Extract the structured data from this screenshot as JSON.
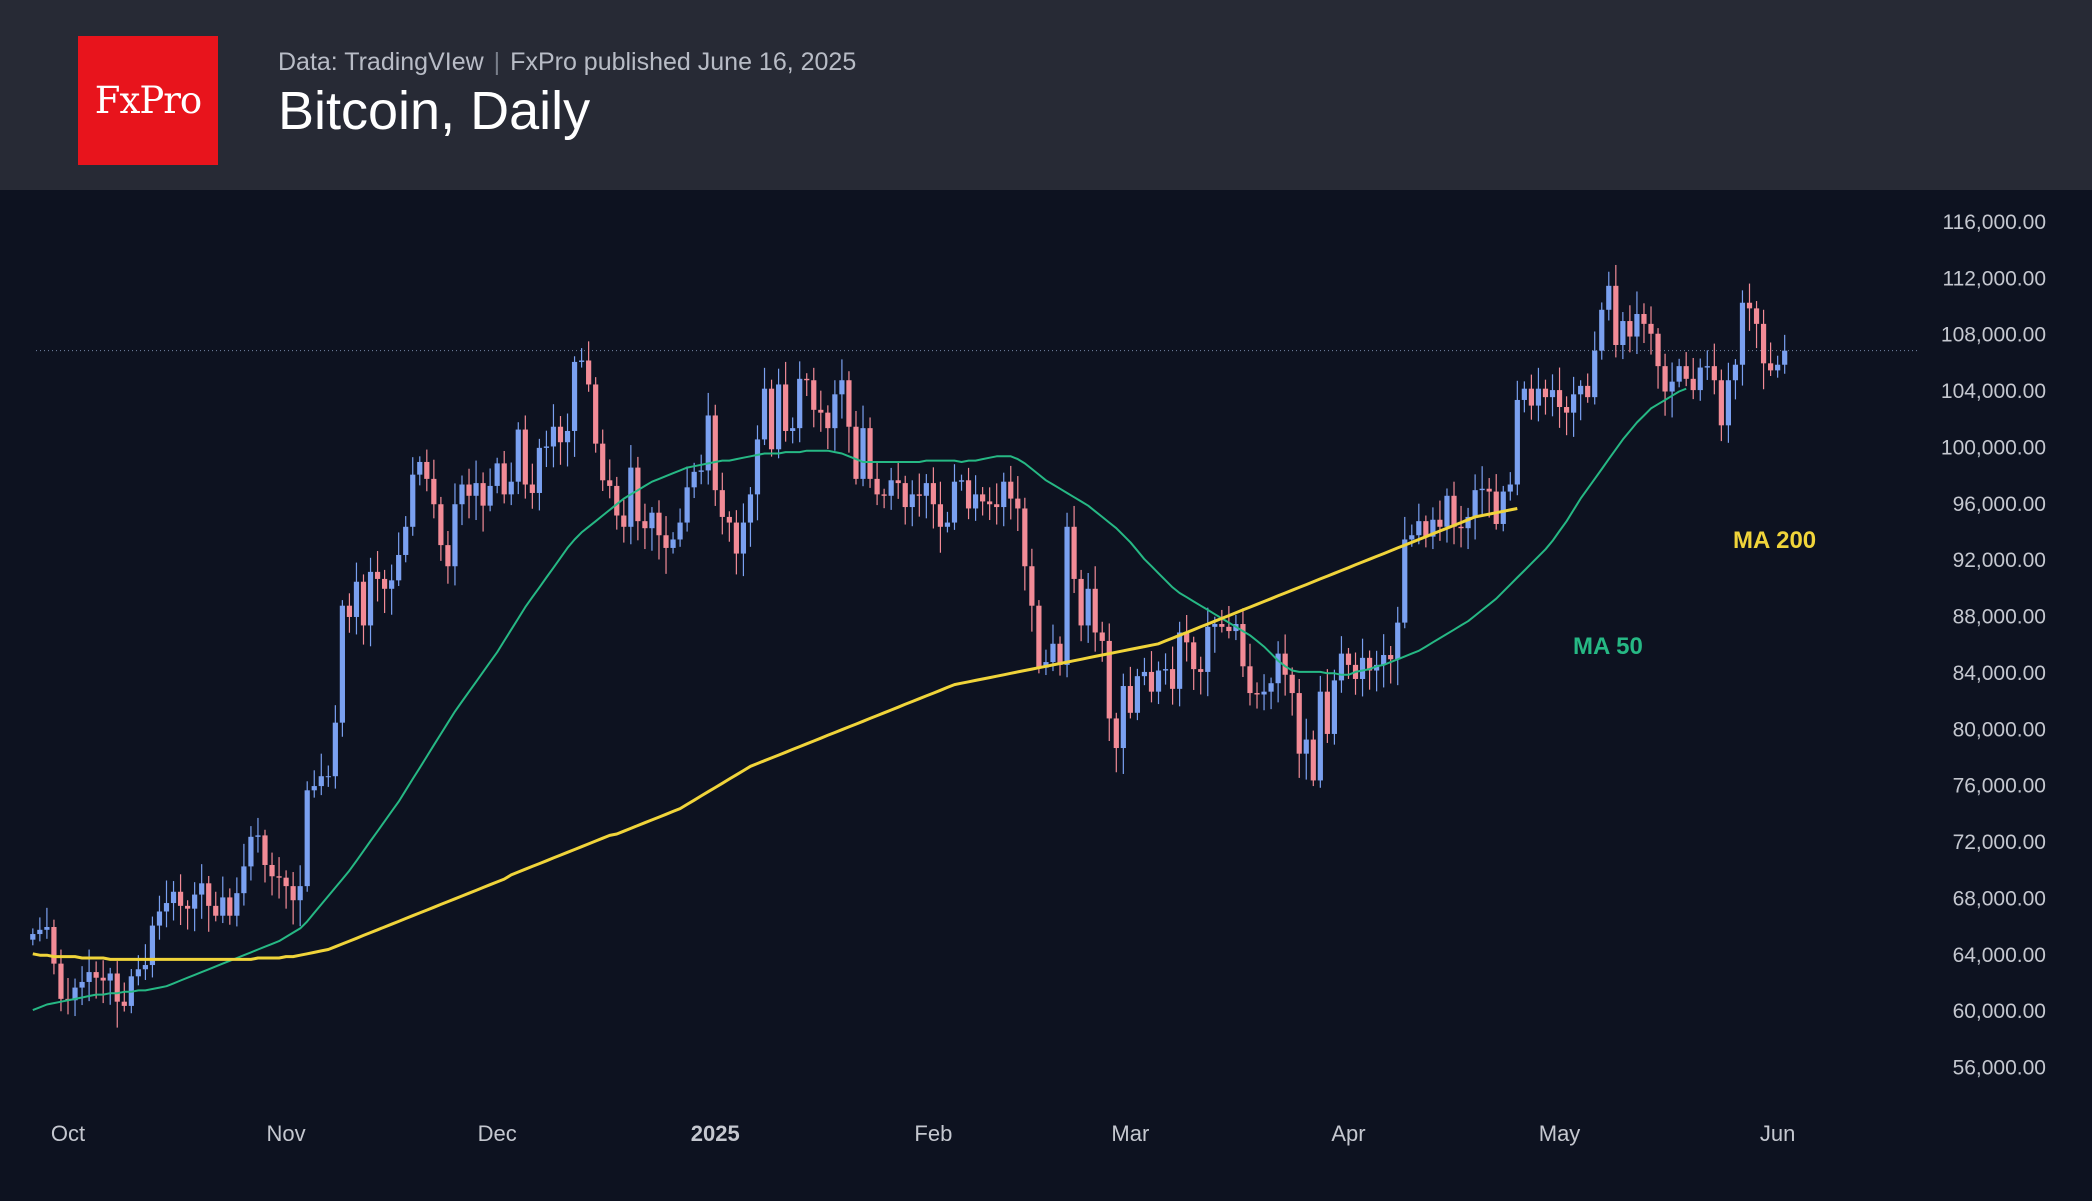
{
  "header": {
    "logo_text": "FxPro",
    "source_text": "Data: TradingVIew",
    "published_text": "FxPro published June 16, 2025",
    "title": "Bitcoin, Daily"
  },
  "colors": {
    "background": "#0d1220",
    "header_bg": "#272a35",
    "logo_bg": "#e8141c",
    "up_candle": "#7aa0f0",
    "down_candle": "#f28b96",
    "ma50": "#26b884",
    "ma200": "#f0d43a"
  },
  "chart_data": {
    "type": "candlestick",
    "title": "Bitcoin, Daily",
    "y_ticks": [
      56000,
      60000,
      64000,
      68000,
      72000,
      76000,
      80000,
      84000,
      88000,
      92000,
      96000,
      100000,
      104000,
      108000,
      112000,
      116000
    ],
    "y_tick_labels": [
      "56,000.00",
      "60,000.00",
      "64,000.00",
      "68,000.00",
      "72,000.00",
      "76,000.00",
      "80,000.00",
      "84,000.00",
      "88,000.00",
      "92,000.00",
      "96,000.00",
      "100,000.00",
      "104,000.00",
      "108,000.00",
      "112,000.00",
      "116,000.00"
    ],
    "x_ticks": [
      {
        "label": "Oct",
        "date": "2024-10-01"
      },
      {
        "label": "Nov",
        "date": "2024-11-01"
      },
      {
        "label": "Dec",
        "date": "2024-12-01"
      },
      {
        "label": "2025",
        "date": "2025-01-01",
        "bold": true
      },
      {
        "label": "Feb",
        "date": "2025-02-01"
      },
      {
        "label": "Mar",
        "date": "2025-03-01"
      },
      {
        "label": "Apr",
        "date": "2025-04-01"
      },
      {
        "label": "May",
        "date": "2025-05-01"
      },
      {
        "label": "Jun",
        "date": "2025-06-01"
      }
    ],
    "date_range": [
      "2024-09-25",
      "2025-06-16"
    ],
    "last_price_line": 106800,
    "candle_series": {
      "name": "BTC daily candles",
      "start_date": "2024-09-26",
      "closes": [
        65400,
        65700,
        65900,
        63300,
        60800,
        60700,
        61600,
        62000,
        62700,
        62300,
        62100,
        62600,
        60600,
        60300,
        62400,
        62900,
        63200,
        66000,
        67000,
        67600,
        68400,
        67400,
        67200,
        68200,
        69000,
        67400,
        66700,
        68000,
        66700,
        68300,
        70200,
        72300,
        72400,
        70300,
        69500,
        69400,
        68800,
        67800,
        68800,
        75600,
        75900,
        76600,
        76600,
        80400,
        88700,
        87900,
        90400,
        87300,
        91100,
        90600,
        89900,
        90500,
        92300,
        94300,
        98000,
        98900,
        97700,
        95900,
        93000,
        91500,
        95900,
        97300,
        96500,
        97400,
        95800,
        97200,
        98800,
        96600,
        97500,
        101200,
        97300,
        96700,
        99900,
        100000,
        101400,
        100300,
        101100,
        106000,
        106100,
        104400,
        100200,
        97600,
        97200,
        95100,
        94300,
        98500,
        94700,
        94200,
        95300,
        93700,
        92800,
        93400,
        94600,
        97100,
        98200,
        98300,
        102200,
        96900,
        95000,
        94600,
        92400,
        94600,
        96600,
        100500,
        104100,
        99800,
        104400,
        101100,
        101300,
        104800,
        104700,
        102600,
        102400,
        101300,
        103700,
        104700,
        101400,
        97700,
        101300,
        97700,
        96600,
        96500,
        97600,
        97400,
        95700,
        96600,
        96500,
        97400,
        95900,
        94300,
        94600,
        97500,
        97600,
        95600,
        96600,
        96100,
        95900,
        95700,
        97500,
        96300,
        95600,
        91500,
        88700,
        84300,
        84700,
        86000,
        84500,
        94300,
        90600,
        87300,
        89900,
        86800,
        86200,
        80700,
        78600,
        83000,
        81100,
        83700,
        84000,
        82600,
        84100,
        84200,
        82800,
        86800,
        86100,
        84200,
        84000,
        87200,
        87400,
        87200,
        86900,
        87400,
        84400,
        82500,
        82400,
        82600,
        83200,
        85300,
        83800,
        82500,
        78200,
        79200,
        76300,
        82600,
        79600,
        83400,
        85300,
        84500,
        83500,
        85000,
        84100,
        84500,
        85200,
        84900,
        87500,
        93400,
        93700,
        94700,
        93600,
        94800,
        94300,
        96500,
        94300,
        94200,
        95000,
        96900,
        97000,
        96800,
        94500,
        96800,
        97300,
        103300,
        104100,
        102900,
        104100,
        103500,
        104000,
        102800,
        102400,
        103700,
        104300,
        103500,
        106800,
        109700,
        111400,
        107200,
        108900,
        107800,
        109400,
        108700,
        108000,
        105700,
        103900,
        104600,
        105700,
        104800,
        104000,
        105600,
        105700,
        104700,
        101500,
        104700,
        105800,
        110200,
        109800,
        108700,
        105900,
        105400,
        105800,
        106800
      ]
    },
    "series": [
      {
        "name": "MA 50",
        "label_text": "MA 50",
        "start_date": "2024-09-26",
        "values": [
          60000,
          60200,
          60400,
          60500,
          60600,
          60700,
          60800,
          60900,
          61000,
          61100,
          61100,
          61200,
          61200,
          61300,
          61300,
          61400,
          61400,
          61500,
          61600,
          61700,
          61900,
          62100,
          62300,
          62500,
          62700,
          62900,
          63100,
          63300,
          63500,
          63700,
          63900,
          64100,
          64300,
          64500,
          64700,
          64900,
          65200,
          65500,
          65800,
          66300,
          66900,
          67500,
          68100,
          68700,
          69300,
          69900,
          70600,
          71300,
          72000,
          72700,
          73400,
          74100,
          74800,
          75600,
          76400,
          77200,
          78000,
          78800,
          79600,
          80400,
          81200,
          81900,
          82600,
          83300,
          84000,
          84700,
          85400,
          86200,
          87000,
          87800,
          88600,
          89300,
          90000,
          90700,
          91400,
          92100,
          92800,
          93400,
          93900,
          94300,
          94700,
          95100,
          95500,
          95900,
          96300,
          96600,
          96900,
          97200,
          97500,
          97700,
          97900,
          98100,
          98300,
          98500,
          98600,
          98700,
          98800,
          98900,
          99000,
          99000,
          99100,
          99200,
          99300,
          99400,
          99500,
          99500,
          99500,
          99600,
          99600,
          99600,
          99700,
          99700,
          99700,
          99700,
          99600,
          99500,
          99300,
          99100,
          98900,
          98900,
          98900,
          98900,
          98900,
          98900,
          98900,
          98900,
          98900,
          99000,
          99000,
          99000,
          99000,
          99000,
          98900,
          99000,
          99000,
          99100,
          99200,
          99300,
          99300,
          99300,
          99100,
          98800,
          98400,
          98000,
          97600,
          97300,
          97000,
          96700,
          96400,
          96100,
          95800,
          95400,
          95000,
          94600,
          94200,
          93700,
          93200,
          92600,
          92000,
          91500,
          91000,
          90500,
          90000,
          89600,
          89300,
          89000,
          88700,
          88400,
          88100,
          87800,
          87500,
          87200,
          86900,
          86600,
          86200,
          85800,
          85300,
          84800,
          84400,
          84100,
          84000,
          84000,
          84000,
          84000,
          83900,
          83900,
          83800,
          83800,
          84000,
          84100,
          84200,
          84400,
          84500,
          84700,
          84900,
          85100,
          85300,
          85500,
          85800,
          86100,
          86400,
          86700,
          87000,
          87300,
          87600,
          88000,
          88400,
          88800,
          89200,
          89700,
          90200,
          90700,
          91200,
          91700,
          92200,
          92700,
          93300,
          94000,
          94700,
          95500,
          96300,
          97000,
          97700,
          98400,
          99100,
          99800,
          100500,
          101100,
          101700,
          102200,
          102700,
          103000,
          103300,
          103600,
          103900,
          104100
        ]
      },
      {
        "name": "MA 200",
        "label_text": "MA 200",
        "start_date": "2024-09-26",
        "values": [
          64000,
          63900,
          63900,
          63800,
          63800,
          63800,
          63800,
          63700,
          63700,
          63700,
          63700,
          63600,
          63600,
          63600,
          63600,
          63600,
          63600,
          63600,
          63600,
          63600,
          63600,
          63600,
          63600,
          63600,
          63600,
          63600,
          63600,
          63600,
          63600,
          63600,
          63600,
          63600,
          63700,
          63700,
          63700,
          63700,
          63800,
          63800,
          63900,
          64000,
          64100,
          64200,
          64300,
          64500,
          64700,
          64900,
          65100,
          65300,
          65500,
          65700,
          65900,
          66100,
          66300,
          66500,
          66700,
          66900,
          67100,
          67300,
          67500,
          67700,
          67900,
          68100,
          68300,
          68500,
          68700,
          68900,
          69100,
          69300,
          69600,
          69800,
          70000,
          70200,
          70400,
          70600,
          70800,
          71000,
          71200,
          71400,
          71600,
          71800,
          72000,
          72200,
          72400,
          72500,
          72700,
          72900,
          73100,
          73300,
          73500,
          73700,
          73900,
          74100,
          74300,
          74600,
          74900,
          75200,
          75500,
          75800,
          76100,
          76400,
          76700,
          77000,
          77300,
          77500,
          77700,
          77900,
          78100,
          78300,
          78500,
          78700,
          78900,
          79100,
          79300,
          79500,
          79700,
          79900,
          80100,
          80300,
          80500,
          80700,
          80900,
          81100,
          81300,
          81500,
          81700,
          81900,
          82100,
          82300,
          82500,
          82700,
          82900,
          83100,
          83200,
          83300,
          83400,
          83500,
          83600,
          83700,
          83800,
          83900,
          84000,
          84100,
          84200,
          84300,
          84400,
          84500,
          84600,
          84700,
          84800,
          84900,
          85000,
          85100,
          85200,
          85300,
          85400,
          85500,
          85600,
          85700,
          85800,
          85900,
          86000,
          86200,
          86400,
          86600,
          86800,
          87000,
          87200,
          87400,
          87600,
          87800,
          88000,
          88200,
          88400,
          88600,
          88800,
          89000,
          89200,
          89400,
          89600,
          89800,
          90000,
          90200,
          90400,
          90600,
          90800,
          91000,
          91200,
          91400,
          91600,
          91800,
          92000,
          92200,
          92400,
          92600,
          92800,
          93000,
          93200,
          93400,
          93600,
          93800,
          94000,
          94200,
          94400,
          94600,
          94800,
          95000,
          95100,
          95200,
          95300,
          95400,
          95500,
          95600
        ]
      }
    ]
  }
}
